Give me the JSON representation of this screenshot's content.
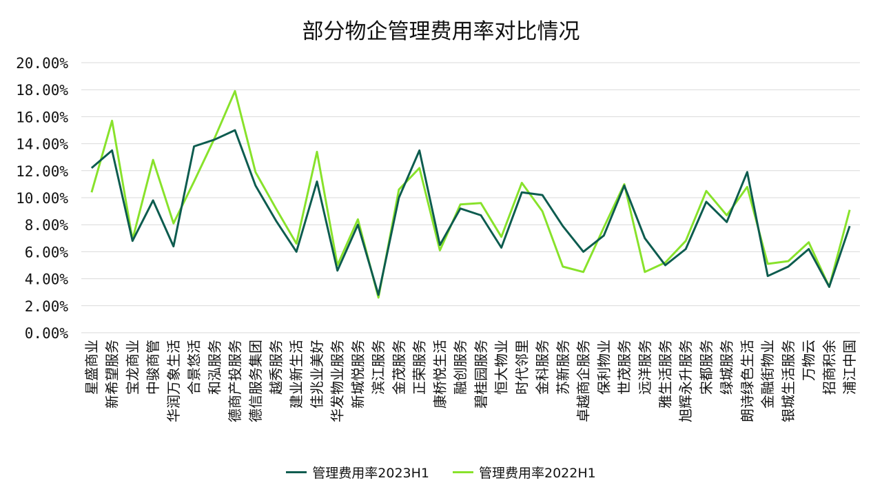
{
  "chart_data": {
    "type": "line",
    "title": "部分物企管理费用率对比情况",
    "xlabel": "",
    "ylabel": "",
    "ylim": [
      0,
      20
    ],
    "yticks": [
      "0.00%",
      "2.00%",
      "4.00%",
      "6.00%",
      "8.00%",
      "10.00%",
      "12.00%",
      "14.00%",
      "16.00%",
      "18.00%",
      "20.00%"
    ],
    "grid": true,
    "legend_position": "bottom",
    "categories": [
      "星盛商业",
      "新希望服务",
      "宝龙商业",
      "中骏商管",
      "华润万象生活",
      "合景悠活",
      "和泓服务",
      "德商产投服务",
      "德信服务集团",
      "越秀服务",
      "建业新生活",
      "佳兆业美好",
      "华发物业服务",
      "新城悦服务",
      "滨江服务",
      "金茂服务",
      "正荣服务",
      "康桥悦生活",
      "融创服务",
      "碧桂园服务",
      "恒大物业",
      "时代邻里",
      "金科服务",
      "苏新服务",
      "卓越商企服务",
      "保利物业",
      "世茂服务",
      "远洋服务",
      "雅生活服务",
      "旭辉永升服务",
      "宋都服务",
      "绿城服务",
      "朗诗绿色生活",
      "金融街物业",
      "银城生活服务",
      "万物云",
      "招商积余",
      "浦江中国"
    ],
    "series": [
      {
        "name": "管理费用率2023H1",
        "color": "#0d5c4f",
        "values": [
          12.2,
          13.5,
          6.8,
          9.8,
          6.4,
          13.8,
          14.3,
          15.0,
          10.9,
          8.3,
          6.0,
          11.2,
          4.6,
          8.0,
          2.8,
          10.0,
          13.5,
          6.5,
          9.2,
          8.7,
          6.3,
          10.4,
          10.2,
          7.9,
          6.0,
          7.2,
          10.9,
          7.0,
          5.0,
          6.2,
          9.7,
          8.2,
          11.9,
          4.2,
          4.9,
          6.2,
          3.4,
          7.9
        ]
      },
      {
        "name": "管理费用率2022H1",
        "color": "#88e22b",
        "values": [
          10.4,
          15.7,
          6.9,
          12.8,
          8.1,
          11.2,
          14.4,
          17.9,
          11.9,
          9.2,
          6.6,
          13.4,
          5.0,
          8.4,
          2.6,
          10.6,
          12.2,
          6.1,
          9.5,
          9.6,
          7.1,
          11.1,
          9.0,
          4.9,
          4.5,
          7.8,
          11.0,
          4.5,
          5.2,
          6.8,
          10.5,
          8.7,
          10.8,
          5.1,
          5.3,
          6.7,
          3.4,
          9.1
        ]
      }
    ]
  }
}
